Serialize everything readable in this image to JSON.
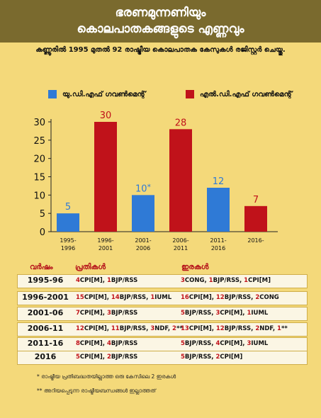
{
  "header": {
    "title_line1": "ഭരണമുന്നണിയും",
    "title_line2": "കൊലപാതകങ്ങളുടെ എണ്ണവും"
  },
  "subtitle": "കണ്ണൂരിൽ 1995 മുതൽ 92 രാഷ്ട്രീയ കൊലപാതക കേസുകൾ രജിസ്റ്റർ ചെയ്തു.",
  "legend": [
    {
      "label": "യു.ഡി.എഫ് ഗവൺമെന്റ്",
      "color": "#2f7ad6"
    },
    {
      "label": "എൽ.ഡി.എഫ് ഗവൺമെന്റ്",
      "color": "#c0121a"
    }
  ],
  "chart_data": {
    "type": "bar",
    "title": "ഭരണമുന്നണിയും കൊലപാതകങ്ങളുടെ എണ്ണവും",
    "ylim": [
      0,
      30
    ],
    "yticks": [
      "0",
      "5",
      "10",
      "15",
      "20",
      "25",
      "30"
    ],
    "grid": false,
    "legend_position": "top",
    "bars": [
      {
        "cat1": "1995-",
        "cat2": "1996",
        "value": 5,
        "label": "5",
        "color": "#2f7ad6"
      },
      {
        "cat1": "1996-",
        "cat2": "2001",
        "value": 30,
        "label": "30",
        "color": "#c0121a"
      },
      {
        "cat1": "2001-",
        "cat2": "2006",
        "value": 10,
        "label": "10",
        "mark": "*",
        "color": "#2f7ad6"
      },
      {
        "cat1": "2006-",
        "cat2": "2011",
        "value": 28,
        "label": "28",
        "color": "#c0121a"
      },
      {
        "cat1": "2011-",
        "cat2": "2016",
        "value": 12,
        "label": "12",
        "color": "#2f7ad6"
      },
      {
        "cat1": "2016-",
        "cat2": "",
        "value": 7,
        "label": "7",
        "color": "#c0121a"
      }
    ]
  },
  "table": {
    "headers": {
      "year": "വർഷം",
      "accused": "പ്രതികൾ",
      "victims": "ഇരകൾ"
    },
    "rows": [
      {
        "year": "1995-96",
        "accused": [
          [
            "4",
            "CPI[M], "
          ],
          [
            "1",
            "BJP/RSS"
          ]
        ],
        "victims": [
          [
            "3",
            "CONG, "
          ],
          [
            "1",
            "BJP/RSS, "
          ],
          [
            "1",
            "CPI[M]"
          ]
        ]
      },
      {
        "year": "1996-2001",
        "accused": [
          [
            "15",
            "CPI[M], "
          ],
          [
            "14",
            "BJP/RSS, "
          ],
          [
            "1",
            "IUML"
          ]
        ],
        "victims": [
          [
            "16",
            "CPI[M], "
          ],
          [
            "12",
            "BJP/RSS, "
          ],
          [
            "2",
            "CONG"
          ]
        ]
      },
      {
        "year": "2001-06",
        "accused": [
          [
            "7",
            "CPI[M], "
          ],
          [
            "3",
            "BJP/RSS"
          ]
        ],
        "victims": [
          [
            "5",
            "BJP/RSS, "
          ],
          [
            "3",
            "CPI[M], "
          ],
          [
            "1",
            "IUML"
          ]
        ]
      },
      {
        "year": "2006-11",
        "accused": [
          [
            "12",
            "CPI[M], "
          ],
          [
            "11",
            "BJP/RSS, "
          ],
          [
            "3",
            "NDF, "
          ],
          [
            "2",
            "**"
          ]
        ],
        "victims": [
          [
            "13",
            "CPI[M], "
          ],
          [
            "12",
            "BJP/RSS, "
          ],
          [
            "2",
            "NDF, "
          ],
          [
            "1",
            "**"
          ]
        ]
      },
      {
        "year": "2011-16",
        "accused": [
          [
            "8",
            "CPI[M], "
          ],
          [
            "4",
            "BJP/RSS"
          ]
        ],
        "victims": [
          [
            "5",
            "BJP/RSS, "
          ],
          [
            "4",
            "CPI[M], "
          ],
          [
            "3",
            "IUML"
          ]
        ]
      },
      {
        "year": "2016",
        "accused": [
          [
            "5",
            "CPI[M], "
          ],
          [
            "2",
            "BJP/RSS"
          ]
        ],
        "victims": [
          [
            "5",
            "BJP/RSS, "
          ],
          [
            "2",
            "CPI[M]"
          ]
        ]
      }
    ]
  },
  "notes": [
    "* രാഷ്ട്രീയ പ്രതിബദ്ധതയില്ലാത്ത ഒരു കേസിലെ 2 ഇരകൾ",
    "** അറിയപ്പെടുന്ന രാഷ്ട്രീയബന്ധങ്ങൾ ഇല്ലാത്തത്"
  ]
}
